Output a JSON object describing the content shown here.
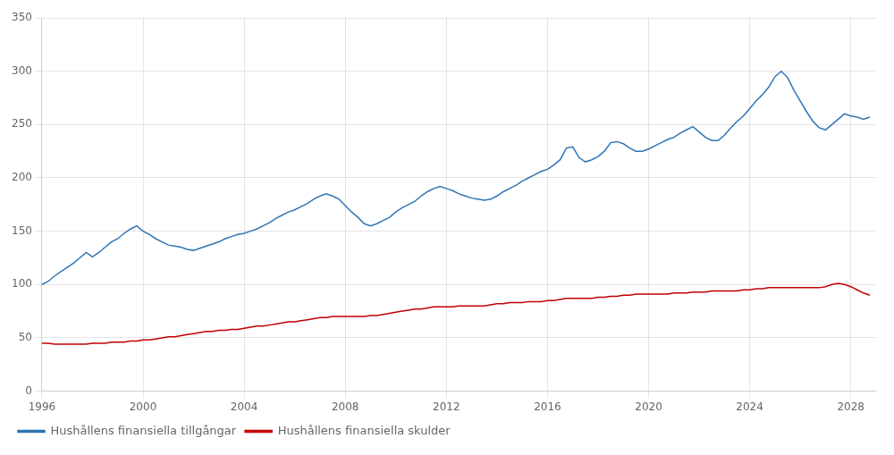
{
  "chart_data": {
    "type": "line",
    "x": [
      1996,
      1996.25,
      1996.5,
      1996.75,
      1997,
      1997.25,
      1997.5,
      1997.75,
      1998,
      1998.25,
      1998.5,
      1998.75,
      1999,
      1999.25,
      1999.5,
      1999.75,
      2000,
      2000.25,
      2000.5,
      2000.75,
      2001,
      2001.25,
      2001.5,
      2001.75,
      2002,
      2002.25,
      2002.5,
      2002.75,
      2003,
      2003.25,
      2003.5,
      2003.75,
      2004,
      2004.25,
      2004.5,
      2004.75,
      2005,
      2005.25,
      2005.5,
      2005.75,
      2006,
      2006.25,
      2006.5,
      2006.75,
      2007,
      2007.25,
      2007.5,
      2007.75,
      2008,
      2008.25,
      2008.5,
      2008.75,
      2009,
      2009.25,
      2009.5,
      2009.75,
      2010,
      2010.25,
      2010.5,
      2010.75,
      2011,
      2011.25,
      2011.5,
      2011.75,
      2012,
      2012.25,
      2012.5,
      2012.75,
      2013,
      2013.25,
      2013.5,
      2013.75,
      2014,
      2014.25,
      2014.5,
      2014.75,
      2015,
      2015.25,
      2015.5,
      2015.75,
      2016,
      2016.25,
      2016.5,
      2016.75,
      2017,
      2017.25,
      2017.5,
      2017.75,
      2018,
      2018.25,
      2018.5,
      2018.75,
      2019,
      2019.25,
      2019.5,
      2019.75,
      2020,
      2020.25,
      2020.5,
      2020.75,
      2021,
      2021.25,
      2021.5,
      2021.75,
      2022,
      2022.25,
      2022.5,
      2022.75,
      2023,
      2023.25,
      2023.5,
      2023.75,
      2024,
      2024.25,
      2024.5,
      2024.75,
      2025,
      2025.25,
      2025.5,
      2025.75,
      2026,
      2026.25,
      2026.5,
      2026.75,
      2027,
      2027.25,
      2027.5,
      2027.75,
      2028,
      2028.25,
      2028.5,
      2028.75
    ],
    "series": [
      {
        "name": "Hushållens finansiella tillgångar",
        "color": "#2E75B6",
        "values": [
          100,
          103,
          108,
          112,
          116,
          120,
          125,
          130,
          126,
          130,
          135,
          140,
          143,
          148,
          152,
          155,
          150,
          147,
          143,
          140,
          137,
          136,
          135,
          133,
          132,
          134,
          136,
          138,
          140,
          143,
          145,
          147,
          148,
          150,
          152,
          155,
          158,
          162,
          165,
          168,
          170,
          173,
          176,
          180,
          183,
          185,
          183,
          180,
          174,
          168,
          163,
          157,
          155,
          157,
          160,
          163,
          168,
          172,
          175,
          178,
          183,
          187,
          190,
          192,
          190,
          188,
          185,
          183,
          181,
          180,
          179,
          180,
          183,
          187,
          190,
          193,
          197,
          200,
          203,
          206,
          208,
          212,
          217,
          228,
          229,
          219,
          215,
          217,
          220,
          225,
          233,
          234,
          232,
          228,
          225,
          225,
          227,
          230,
          233,
          236,
          238,
          242,
          245,
          248,
          243,
          238,
          235,
          235,
          240,
          247,
          253,
          258,
          265,
          272,
          278,
          285,
          295,
          300,
          294,
          282,
          272,
          262,
          253,
          247,
          245,
          250,
          255,
          260,
          258,
          257,
          255,
          257
        ]
      },
      {
        "name": "Hushållens finansiella skulder",
        "color": "#C00000",
        "values": [
          45,
          45,
          44,
          44,
          44,
          44,
          44,
          44,
          45,
          45,
          45,
          46,
          46,
          46,
          47,
          47,
          48,
          48,
          49,
          50,
          51,
          51,
          52,
          53,
          54,
          55,
          56,
          56,
          57,
          57,
          58,
          58,
          59,
          60,
          61,
          61,
          62,
          63,
          64,
          65,
          65,
          66,
          67,
          68,
          69,
          69,
          70,
          70,
          70,
          70,
          70,
          70,
          71,
          71,
          72,
          73,
          74,
          75,
          76,
          77,
          77,
          78,
          79,
          79,
          79,
          79,
          80,
          80,
          80,
          80,
          80,
          81,
          82,
          82,
          83,
          83,
          83,
          84,
          84,
          84,
          85,
          85,
          86,
          87,
          87,
          87,
          87,
          87,
          88,
          88,
          89,
          89,
          90,
          90,
          91,
          91,
          91,
          91,
          91,
          91,
          92,
          92,
          92,
          93,
          93,
          93,
          94,
          94,
          94,
          94,
          94,
          95,
          95,
          96,
          96,
          97,
          97,
          97,
          97,
          97,
          97,
          97,
          97,
          97,
          98,
          100,
          101,
          100,
          98,
          95,
          92,
          90
        ]
      }
    ],
    "xlim": [
      1996,
      2029
    ],
    "xticks": [
      1996,
      2000,
      2004,
      2008,
      2012,
      2016,
      2020,
      2024,
      2028
    ],
    "ylim": [
      0,
      350
    ],
    "yticks": [
      0,
      50,
      100,
      150,
      200,
      250,
      300,
      350
    ],
    "grid": true,
    "legend": "bottom"
  }
}
